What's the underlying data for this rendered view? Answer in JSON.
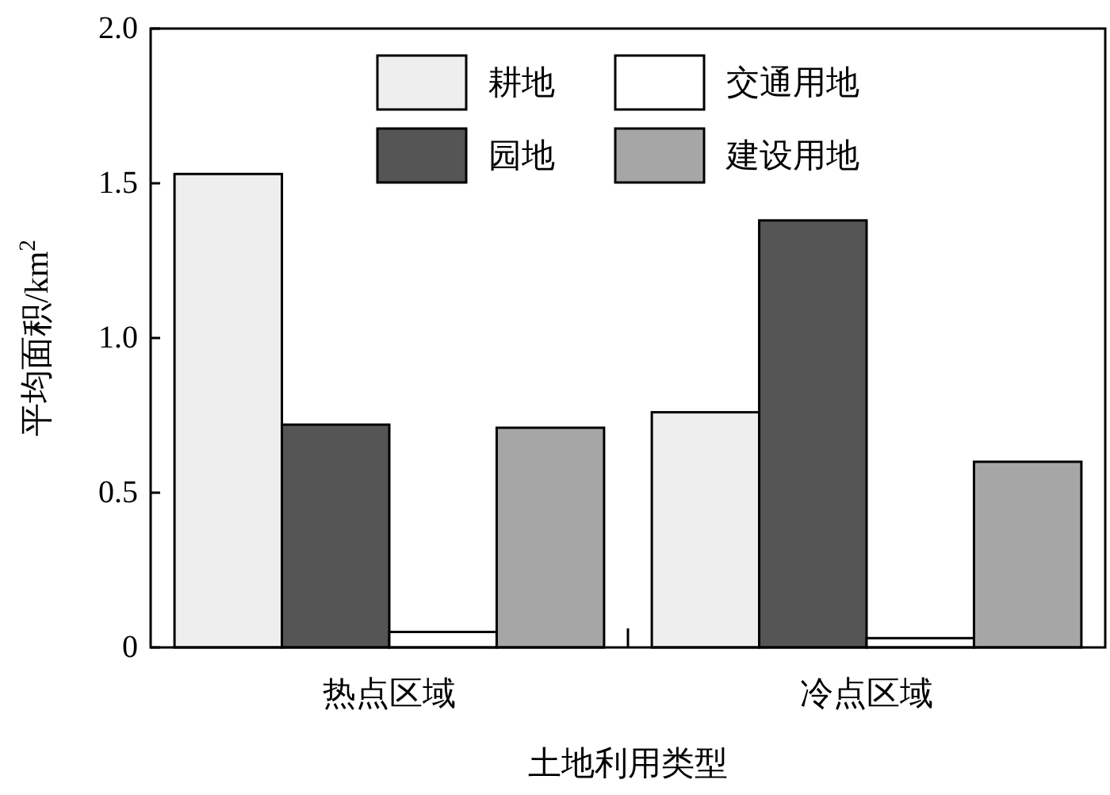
{
  "chart_data": {
    "type": "bar",
    "xlabel": "土地利用类型",
    "ylabel": "平均面积/km$^{2}$",
    "categories": [
      "热点区域",
      "冷点区域"
    ],
    "series": [
      {
        "name": "耕地",
        "color": "#eeeeee",
        "values": [
          1.53,
          0.76
        ]
      },
      {
        "name": "园地",
        "color": "#555555",
        "values": [
          0.72,
          1.38
        ]
      },
      {
        "name": "交通用地",
        "color": "#ffffff",
        "values": [
          0.05,
          0.03
        ]
      },
      {
        "name": "建设用地",
        "color": "#a6a6a6",
        "values": [
          0.71,
          0.6
        ]
      }
    ],
    "ylim": [
      0,
      2.0
    ],
    "yticks": [
      {
        "value": 0,
        "label": "0"
      },
      0.5,
      {
        "value": 1,
        "label": "1.0"
      },
      1.5,
      {
        "value": 2,
        "label": "2.0"
      }
    ],
    "legend": "top"
  }
}
